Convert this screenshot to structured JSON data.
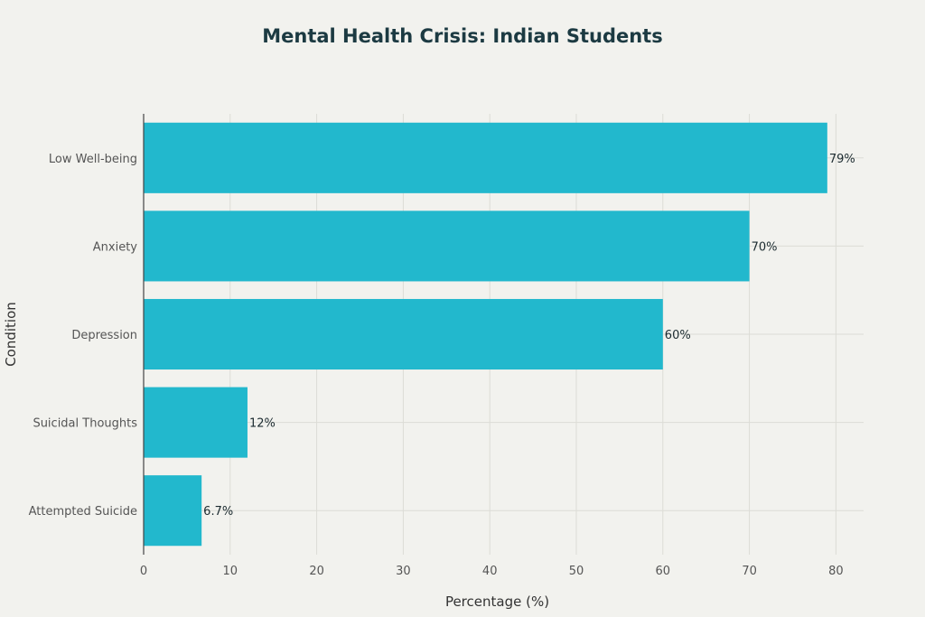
{
  "chart_data": {
    "type": "bar",
    "orientation": "horizontal",
    "title": "Mental Health Crisis: Indian Students",
    "xlabel": "Percentage (%)",
    "ylabel": "Condition",
    "categories": [
      "Low Well-being",
      "Anxiety",
      "Depression",
      "Suicidal Thoughts",
      "Attempted Suicide"
    ],
    "values": [
      79,
      70,
      60,
      12,
      6.7
    ],
    "data_labels": [
      "79%",
      "70%",
      "60%",
      "12%",
      "6.7%"
    ],
    "xlim": [
      0,
      83
    ],
    "xticks": [
      0,
      10,
      20,
      30,
      40,
      50,
      60,
      70,
      80
    ],
    "grid": true,
    "legend": "none",
    "colors": {
      "bar": "#22b8cd",
      "background": "#f2f2ee",
      "grid": "#dcdcd6",
      "title": "#1c3a42"
    }
  }
}
